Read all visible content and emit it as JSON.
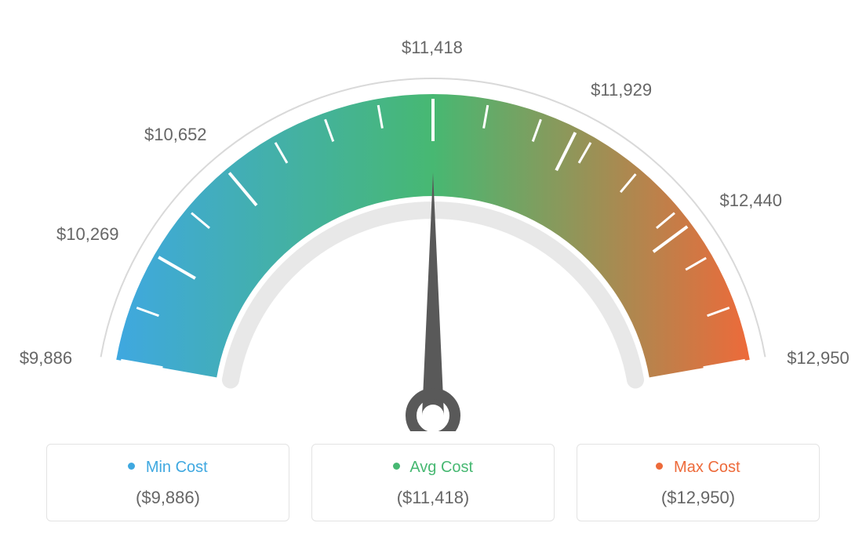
{
  "gauge": {
    "type": "gauge",
    "min_value": 9886,
    "max_value": 12950,
    "avg_value": 11418,
    "needle_value": 11418,
    "tick_values": [
      9886,
      10269,
      10652,
      11418,
      11929,
      12440,
      12950
    ],
    "tick_labels": [
      "$9,886",
      "$10,269",
      "$10,652",
      "$11,418",
      "$11,929",
      "$12,440",
      "$12,950"
    ],
    "label_color": "#666666",
    "label_fontsize": 22,
    "outer_ring_color": "#d9d9d9",
    "outer_ring_width": 2,
    "inner_ring_color": "#e8e8e8",
    "inner_ring_width": 22,
    "tick_mark_color": "#ffffff",
    "tick_mark_width": 3,
    "arc_colors": {
      "start": "#3fa8e0",
      "mid": "#47b872",
      "end": "#ed6a3a"
    },
    "arc_thickness": 130,
    "needle_color": "#595959",
    "background_color": "#ffffff"
  },
  "legend": {
    "items": [
      {
        "label": "Min Cost",
        "value": "($9,886)",
        "dot_color": "#3fa8e0",
        "text_color": "#3fa8e0"
      },
      {
        "label": "Avg Cost",
        "value": "($11,418)",
        "dot_color": "#47b872",
        "text_color": "#47b872"
      },
      {
        "label": "Max Cost",
        "value": "($12,950)",
        "dot_color": "#ed6a3a",
        "text_color": "#ed6a3a"
      }
    ],
    "card_border": "#e3e3e3",
    "value_color": "#666666",
    "title_fontsize": 20,
    "value_fontsize": 22
  }
}
